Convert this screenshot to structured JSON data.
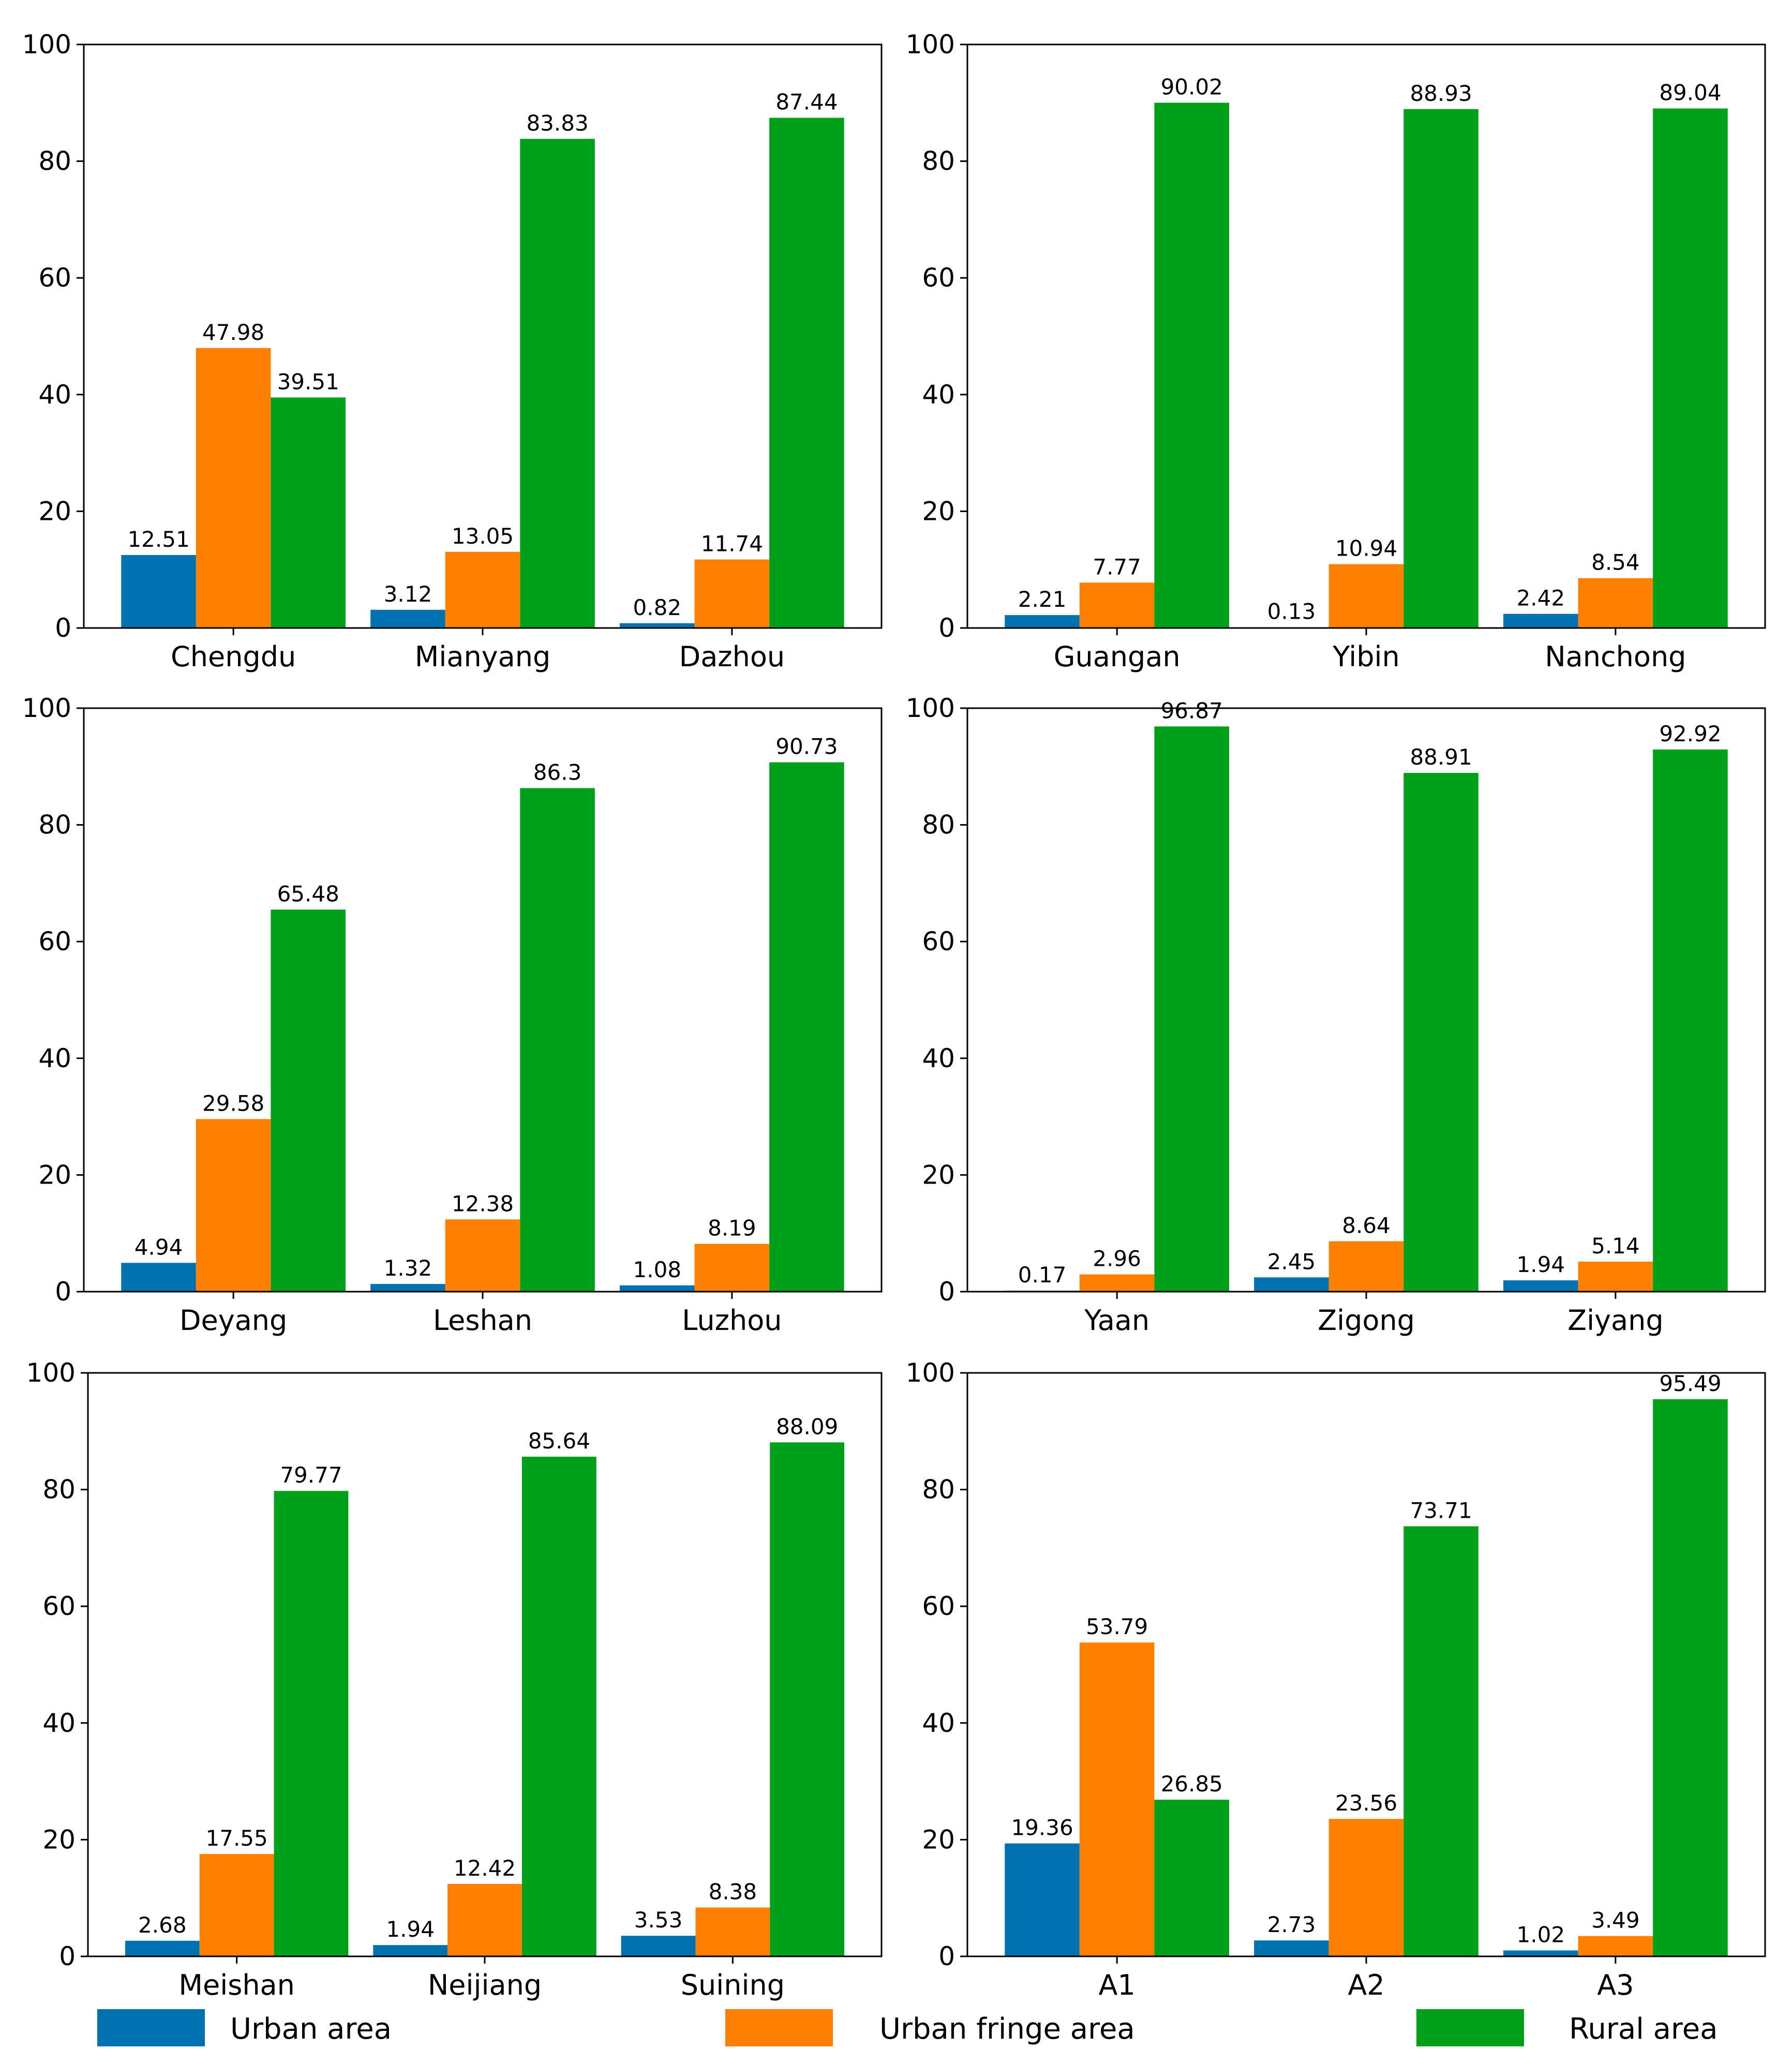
{
  "chart_data": [
    {
      "type": "bar",
      "categories": [
        "Chengdu",
        "Mianyang",
        "Dazhou"
      ],
      "series": [
        {
          "name": "Urban area",
          "values": [
            12.51,
            3.12,
            0.82
          ]
        },
        {
          "name": "Urban fringe area",
          "values": [
            47.98,
            13.05,
            11.74
          ]
        },
        {
          "name": "Rural area",
          "values": [
            39.51,
            83.83,
            87.44
          ]
        }
      ],
      "ylim": [
        0,
        100
      ],
      "yticks": [
        "0",
        "20",
        "40",
        "60",
        "80",
        "100"
      ]
    },
    {
      "type": "bar",
      "categories": [
        "Guangan",
        "Yibin",
        "Nanchong"
      ],
      "series": [
        {
          "name": "Urban area",
          "values": [
            2.21,
            0.13,
            2.42
          ]
        },
        {
          "name": "Urban fringe area",
          "values": [
            7.77,
            10.94,
            8.54
          ]
        },
        {
          "name": "Rural area",
          "values": [
            90.02,
            88.93,
            89.04
          ]
        }
      ],
      "ylim": [
        0,
        100
      ],
      "yticks": [
        "0",
        "20",
        "40",
        "60",
        "80",
        "100"
      ]
    },
    {
      "type": "bar",
      "categories": [
        "Deyang",
        "Leshan",
        "Luzhou"
      ],
      "series": [
        {
          "name": "Urban area",
          "values": [
            4.94,
            1.32,
            1.08
          ]
        },
        {
          "name": "Urban fringe area",
          "values": [
            29.58,
            12.38,
            8.19
          ]
        },
        {
          "name": "Rural area",
          "values": [
            65.48,
            86.3,
            90.73
          ]
        }
      ],
      "ylim": [
        0,
        100
      ],
      "yticks": [
        "0",
        "20",
        "40",
        "60",
        "80",
        "100"
      ]
    },
    {
      "type": "bar",
      "categories": [
        "Yaan",
        "Zigong",
        "Ziyang"
      ],
      "series": [
        {
          "name": "Urban area",
          "values": [
            0.17,
            2.45,
            1.94
          ]
        },
        {
          "name": "Urban fringe area",
          "values": [
            2.96,
            8.64,
            5.14
          ]
        },
        {
          "name": "Rural area",
          "values": [
            96.87,
            88.91,
            92.92
          ]
        }
      ],
      "ylim": [
        0,
        100
      ],
      "yticks": [
        "0",
        "20",
        "40",
        "60",
        "80",
        "100"
      ]
    },
    {
      "type": "bar",
      "categories": [
        "Meishan",
        "Neijiang",
        "Suining"
      ],
      "series": [
        {
          "name": "Urban area",
          "values": [
            2.68,
            1.94,
            3.53
          ]
        },
        {
          "name": "Urban fringe area",
          "values": [
            17.55,
            12.42,
            8.38
          ]
        },
        {
          "name": "Rural area",
          "values": [
            79.77,
            85.64,
            88.09
          ]
        }
      ],
      "ylim": [
        0,
        100
      ],
      "yticks": [
        "0",
        "20",
        "40",
        "60",
        "80",
        "100"
      ]
    },
    {
      "type": "bar",
      "categories": [
        "A1",
        "A2",
        "A3"
      ],
      "series": [
        {
          "name": "Urban area",
          "values": [
            19.36,
            2.73,
            1.02
          ]
        },
        {
          "name": "Urban fringe area",
          "values": [
            53.79,
            23.56,
            3.49
          ]
        },
        {
          "name": "Rural area",
          "values": [
            26.85,
            73.71,
            95.49
          ]
        }
      ],
      "ylim": [
        0,
        100
      ],
      "yticks": [
        "0",
        "20",
        "40",
        "60",
        "80",
        "100"
      ]
    }
  ],
  "legend": [
    {
      "label": "Urban area",
      "color": "#0072b2"
    },
    {
      "label": "Urban fringe area",
      "color": "#ff7f00"
    },
    {
      "label": "Rural area",
      "color": "#00a01a"
    }
  ]
}
